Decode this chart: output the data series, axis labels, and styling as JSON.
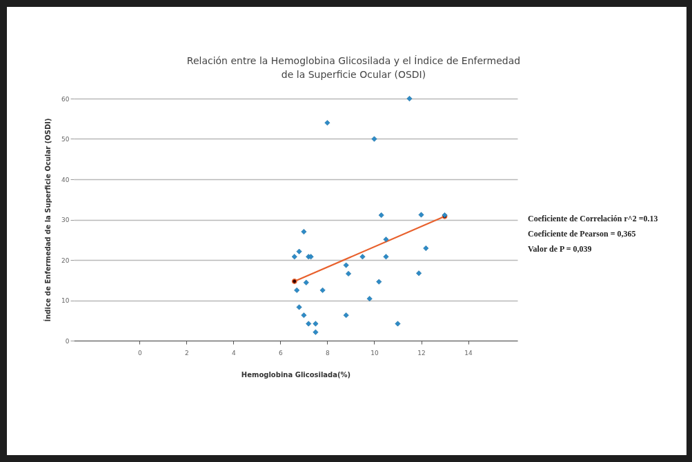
{
  "chart_data": {
    "type": "scatter",
    "title": "Relación entre la Hemoglobina Glicosilada y el Índice de Enfermedad\nde la Superficie Ocular (OSDI)",
    "xlabel": "Hemoglobina Glicosilada(%)",
    "ylabel": "Índice de Enfermedad de la Superficie Ocular (OSDI)",
    "xlim": [
      -2.8,
      16.1
    ],
    "xticks": [
      0,
      2,
      4,
      6,
      8,
      10,
      12,
      14
    ],
    "ylim": [
      0,
      60
    ],
    "yticks": [
      0,
      10,
      20,
      30,
      40,
      50,
      60
    ],
    "grid": "y",
    "series": [
      {
        "marker": "diamond",
        "color": "#2e8bc7",
        "x": [
          10.3,
          12.0,
          13.0,
          7.0,
          10.5,
          6.8,
          12.2,
          6.6,
          7.2,
          7.3,
          9.5,
          10.5,
          8.8,
          8.9,
          11.9,
          7.1,
          10.2,
          6.7,
          7.8,
          9.8,
          6.8,
          7.0,
          8.8,
          7.2,
          7.5,
          7.5,
          11.0,
          11.5,
          8.0,
          10.0
        ],
        "values": [
          31.1,
          31.2,
          31.1,
          27.0,
          25.1,
          22.1,
          22.9,
          20.8,
          20.8,
          20.8,
          20.8,
          20.8,
          18.7,
          16.6,
          16.7,
          14.4,
          14.6,
          12.5,
          12.5,
          10.4,
          8.3,
          6.3,
          6.3,
          4.2,
          4.2,
          2.1,
          4.2,
          60,
          54,
          50
        ]
      },
      {
        "type": "line",
        "marker": "circle",
        "color": "#e8602c",
        "x": [
          6.6,
          13.0
        ],
        "values": [
          14.7,
          30.8
        ]
      }
    ],
    "annotations": [
      "Coeficiente de Correlación r^2 =0.13",
      "Coeficiente de Pearson = 0,365",
      "Valor de P = 0,039"
    ]
  }
}
